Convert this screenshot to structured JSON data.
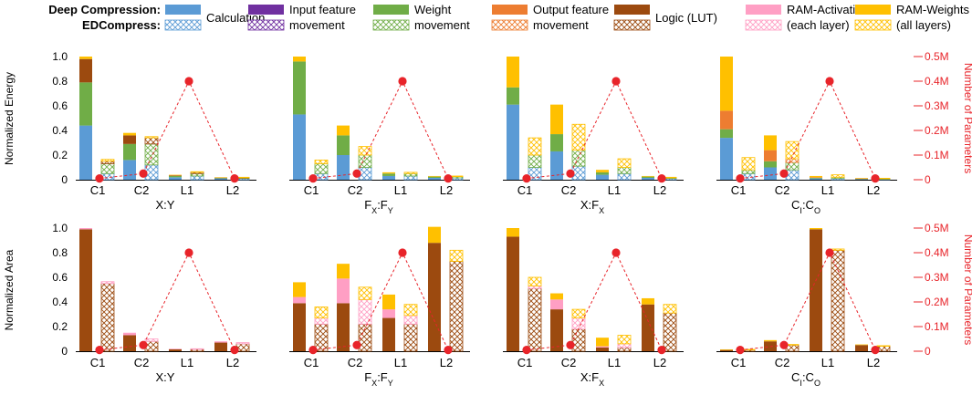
{
  "legend": {
    "row_labels": [
      "Deep Compression:",
      "EDCompress:"
    ],
    "items": [
      {
        "key": "calc",
        "label": "Calculation",
        "color": "#5b9bd5"
      },
      {
        "key": "inmov",
        "label": "Input feature movement",
        "line1": "Input feature",
        "line2": "movement",
        "color": "#7030a0"
      },
      {
        "key": "wmov",
        "label": "Weight movement",
        "line1": "Weight",
        "line2": "movement",
        "color": "#70ad47"
      },
      {
        "key": "outmov",
        "label": "Output feature movement",
        "line1": "Output feature",
        "line2": "movement",
        "color": "#ed7d31"
      },
      {
        "key": "logic",
        "label": "Logic (LUT)",
        "color": "#9c4a0f"
      },
      {
        "key": "ramact",
        "label": "RAM-Activation (each layer)",
        "line1": "RAM-Activation",
        "line2": "(each layer)",
        "color": "#ff9fc4"
      },
      {
        "key": "ramw",
        "label": "RAM-Weights (all layers)",
        "line1": "RAM-Weights",
        "line2": "(all layers)",
        "color": "#ffc000"
      }
    ]
  },
  "chart_data": [
    {
      "type": "bar",
      "metric": "energy",
      "ylabel": "Normalized Energy",
      "y2label": "Number of Parameters",
      "ylim": [
        0,
        1
      ],
      "yticks": [
        "0",
        "0.2",
        "0.4",
        "0.6",
        "0.8",
        "1.0"
      ],
      "y2lim": [
        0,
        500000
      ],
      "y2ticks": [
        "0",
        "0.1M",
        "0.2M",
        "0.3M",
        "0.4M",
        "0.5M"
      ],
      "categories": [
        "C1",
        "C2",
        "L1",
        "L2"
      ],
      "params": [
        5000,
        25000,
        400000,
        5000
      ],
      "panels": [
        {
          "title_main": "X:Y",
          "title_sub1": "",
          "title_mid": "",
          "title_sub2": "",
          "dc": [
            [
              0.44,
              0,
              0.35,
              0,
              0.19,
              0,
              0.02
            ],
            [
              0.16,
              0,
              0.13,
              0,
              0.07,
              0,
              0.02
            ],
            [
              0.02,
              0,
              0.01,
              0,
              0.005,
              0,
              0.005
            ],
            [
              0.01,
              0,
              0.005,
              0,
              0.002,
              0,
              0.003
            ]
          ],
          "ed": [
            [
              0.05,
              0,
              0.08,
              0,
              0.02,
              0,
              0.015
            ],
            [
              0.12,
              0,
              0.17,
              0,
              0.05,
              0,
              0.01
            ],
            [
              0.03,
              0,
              0.02,
              0,
              0.01,
              0,
              0.005
            ],
            [
              0.01,
              0,
              0.005,
              0,
              0.002,
              0,
              0.003
            ]
          ]
        },
        {
          "title_main": "F",
          "title_sub1": "X",
          "title_mid": ":F",
          "title_sub2": "Y",
          "dc": [
            [
              0.53,
              0,
              0.43,
              0,
              0,
              0,
              0.04
            ],
            [
              0.2,
              0,
              0.16,
              0,
              0,
              0,
              0.08
            ],
            [
              0.03,
              0,
              0.02,
              0,
              0,
              0,
              0.01
            ],
            [
              0.015,
              0,
              0.01,
              0,
              0,
              0,
              0.005
            ]
          ],
          "ed": [
            [
              0.05,
              0,
              0.08,
              0,
              0,
              0,
              0.03
            ],
            [
              0.1,
              0,
              0.1,
              0,
              0,
              0,
              0.07
            ],
            [
              0.03,
              0,
              0.02,
              0,
              0,
              0,
              0.01
            ],
            [
              0.015,
              0,
              0.01,
              0,
              0,
              0,
              0.005
            ]
          ]
        },
        {
          "title_main": "X:F",
          "title_sub1": "",
          "title_mid": "",
          "title_sub2": "X",
          "dc": [
            [
              0.61,
              0,
              0.14,
              0,
              0,
              0,
              0.25
            ],
            [
              0.23,
              0,
              0.14,
              0,
              0,
              0,
              0.24
            ],
            [
              0.04,
              0,
              0.02,
              0,
              0,
              0,
              0.02
            ],
            [
              0.015,
              0,
              0.01,
              0,
              0,
              0,
              0.005
            ]
          ],
          "ed": [
            [
              0.1,
              0,
              0.1,
              0,
              0,
              0,
              0.14
            ],
            [
              0.11,
              0,
              0.13,
              0,
              0,
              0,
              0.21
            ],
            [
              0.05,
              0,
              0.05,
              0,
              0,
              0,
              0.07
            ],
            [
              0.01,
              0,
              0.005,
              0,
              0,
              0,
              0.005
            ]
          ]
        },
        {
          "title_main": "C",
          "title_sub1": "I",
          "title_mid": ":C",
          "title_sub2": "O",
          "dc": [
            [
              0.34,
              0,
              0.07,
              0.15,
              0,
              0,
              0.44
            ],
            [
              0.1,
              0,
              0.05,
              0.09,
              0,
              0,
              0.12
            ],
            [
              0.01,
              0,
              0.005,
              0.005,
              0,
              0,
              0.01
            ],
            [
              0.005,
              0,
              0.003,
              0.002,
              0,
              0,
              0.004
            ]
          ],
          "ed": [
            [
              0.05,
              0,
              0.03,
              0,
              0,
              0,
              0.1
            ],
            [
              0.08,
              0,
              0.06,
              0.03,
              0,
              0,
              0.14
            ],
            [
              0.01,
              0,
              0.01,
              0,
              0,
              0,
              0.02
            ],
            [
              0.005,
              0,
              0.003,
              0,
              0,
              0,
              0.004
            ]
          ]
        }
      ]
    },
    {
      "type": "bar",
      "metric": "area",
      "ylabel": "Normalized Area",
      "y2label": "Number of Parameters",
      "ylim": [
        0,
        1
      ],
      "yticks": [
        "0",
        "0.2",
        "0.4",
        "0.6",
        "0.8",
        "1.0"
      ],
      "y2lim": [
        0,
        500000
      ],
      "y2ticks": [
        "0",
        "0.1M",
        "0.2M",
        "0.3M",
        "0.4M",
        "0.5M"
      ],
      "categories": [
        "C1",
        "C2",
        "L1",
        "L2"
      ],
      "params": [
        5000,
        25000,
        400000,
        5000
      ],
      "panels": [
        {
          "title_main": "X:Y",
          "title_sub1": "",
          "title_mid": "",
          "title_sub2": "",
          "dc": [
            [
              0.99,
              0.01
            ],
            [
              0.13,
              0.02
            ],
            [
              0.015,
              0.005
            ],
            [
              0.07,
              0.01
            ]
          ],
          "ed": [
            [
              0.55,
              0.015
            ],
            [
              0.08,
              0.02
            ],
            [
              0.015,
              0.005
            ],
            [
              0.06,
              0.01
            ]
          ]
        },
        {
          "title_main": "F",
          "title_sub1": "X",
          "title_mid": ":F",
          "title_sub2": "Y",
          "dc": [
            [
              0.39,
              0.05,
              0.12
            ],
            [
              0.39,
              0.2,
              0.12
            ],
            [
              0.27,
              0.07,
              0.12
            ],
            [
              0.88,
              0,
              0.13
            ]
          ],
          "ed": [
            [
              0.22,
              0.05,
              0.09
            ],
            [
              0.22,
              0.2,
              0.1
            ],
            [
              0.22,
              0.07,
              0.09
            ],
            [
              0.73,
              0,
              0.09
            ]
          ]
        },
        {
          "title_main": "X:F",
          "title_sub1": "",
          "title_mid": "",
          "title_sub2": "X",
          "dc": [
            [
              0.93,
              0,
              0.07
            ],
            [
              0.34,
              0.08,
              0.05
            ],
            [
              0.03,
              0.01,
              0.07
            ],
            [
              0.38,
              0,
              0.05
            ]
          ],
          "ed": [
            [
              0.51,
              0.02,
              0.07
            ],
            [
              0.18,
              0.09,
              0.07
            ],
            [
              0.03,
              0.03,
              0.07
            ],
            [
              0.31,
              0,
              0.07
            ]
          ]
        },
        {
          "title_main": "C",
          "title_sub1": "I",
          "title_mid": ":C",
          "title_sub2": "O",
          "dc": [
            [
              0.01,
              0,
              0.005
            ],
            [
              0.08,
              0,
              0.01
            ],
            [
              0.99,
              0,
              0.01
            ],
            [
              0.05,
              0,
              0.005
            ]
          ],
          "ed": [
            [
              0.01,
              0,
              0.005
            ],
            [
              0.05,
              0,
              0.005
            ],
            [
              0.82,
              0,
              0.01
            ],
            [
              0.04,
              0,
              0.005
            ]
          ]
        }
      ]
    }
  ]
}
